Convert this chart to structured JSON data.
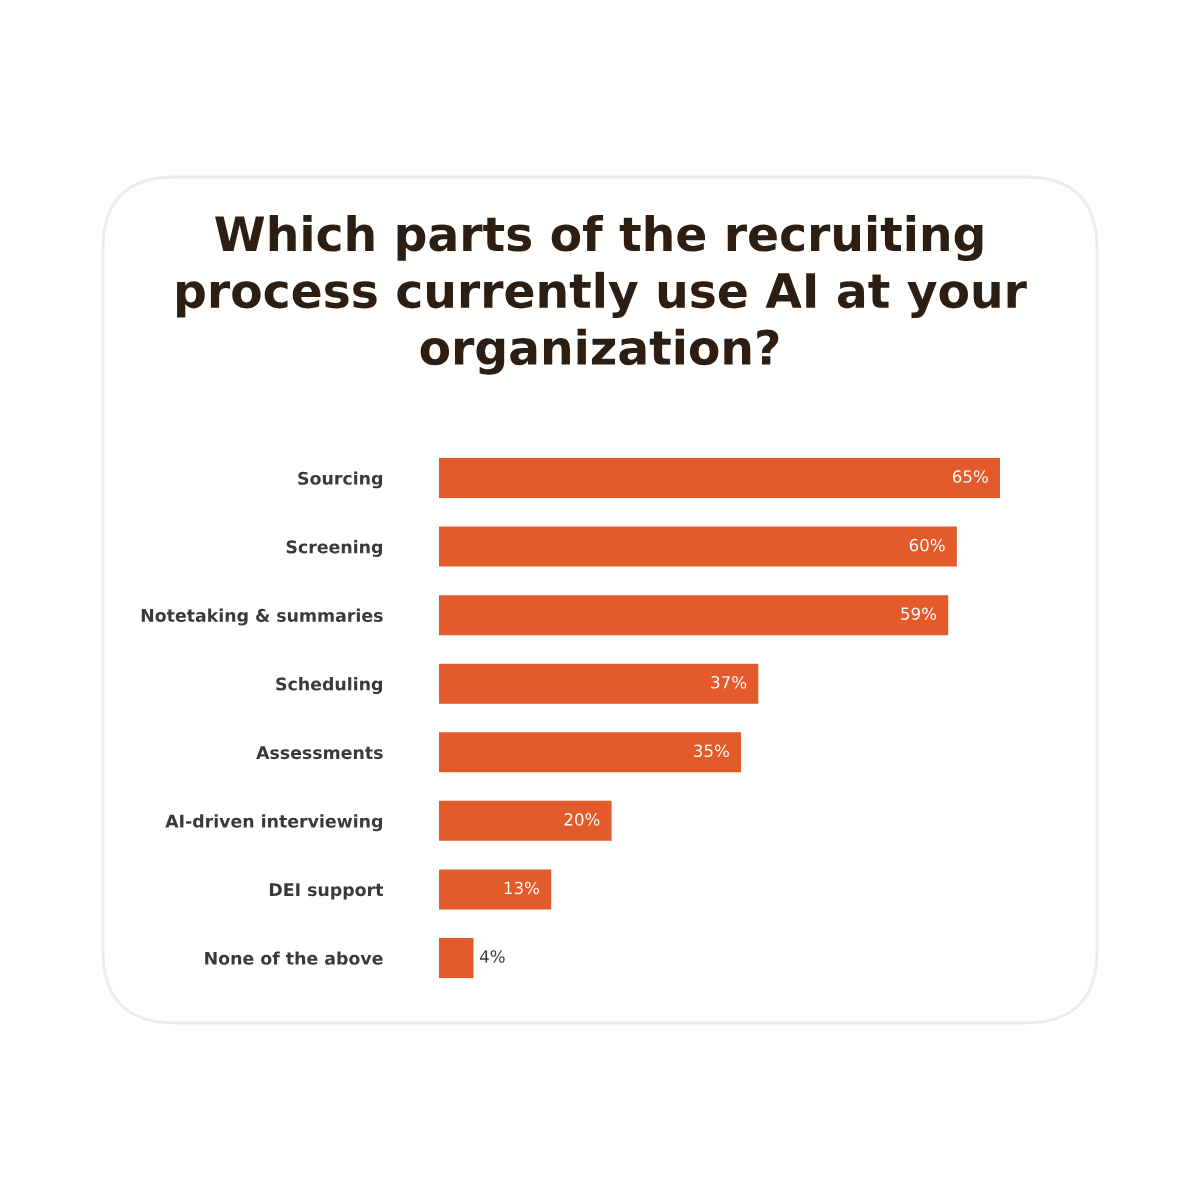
{
  "chart_data": {
    "type": "bar",
    "orientation": "horizontal",
    "title": "Which parts of the recruiting\nprocess currently use AI at your\norganization?",
    "categories": [
      "Sourcing",
      "Screening",
      "Notetaking & summaries",
      "Scheduling",
      "Assessments",
      "AI-driven interviewing",
      "DEI support",
      "None of the above"
    ],
    "values": [
      65,
      60,
      59,
      37,
      35,
      20,
      13,
      4
    ],
    "value_labels": [
      "65%",
      "60%",
      "59%",
      "37%",
      "35%",
      "20%",
      "13%",
      "4%"
    ],
    "color": "#e35a2b",
    "grid": false,
    "legend": false
  }
}
